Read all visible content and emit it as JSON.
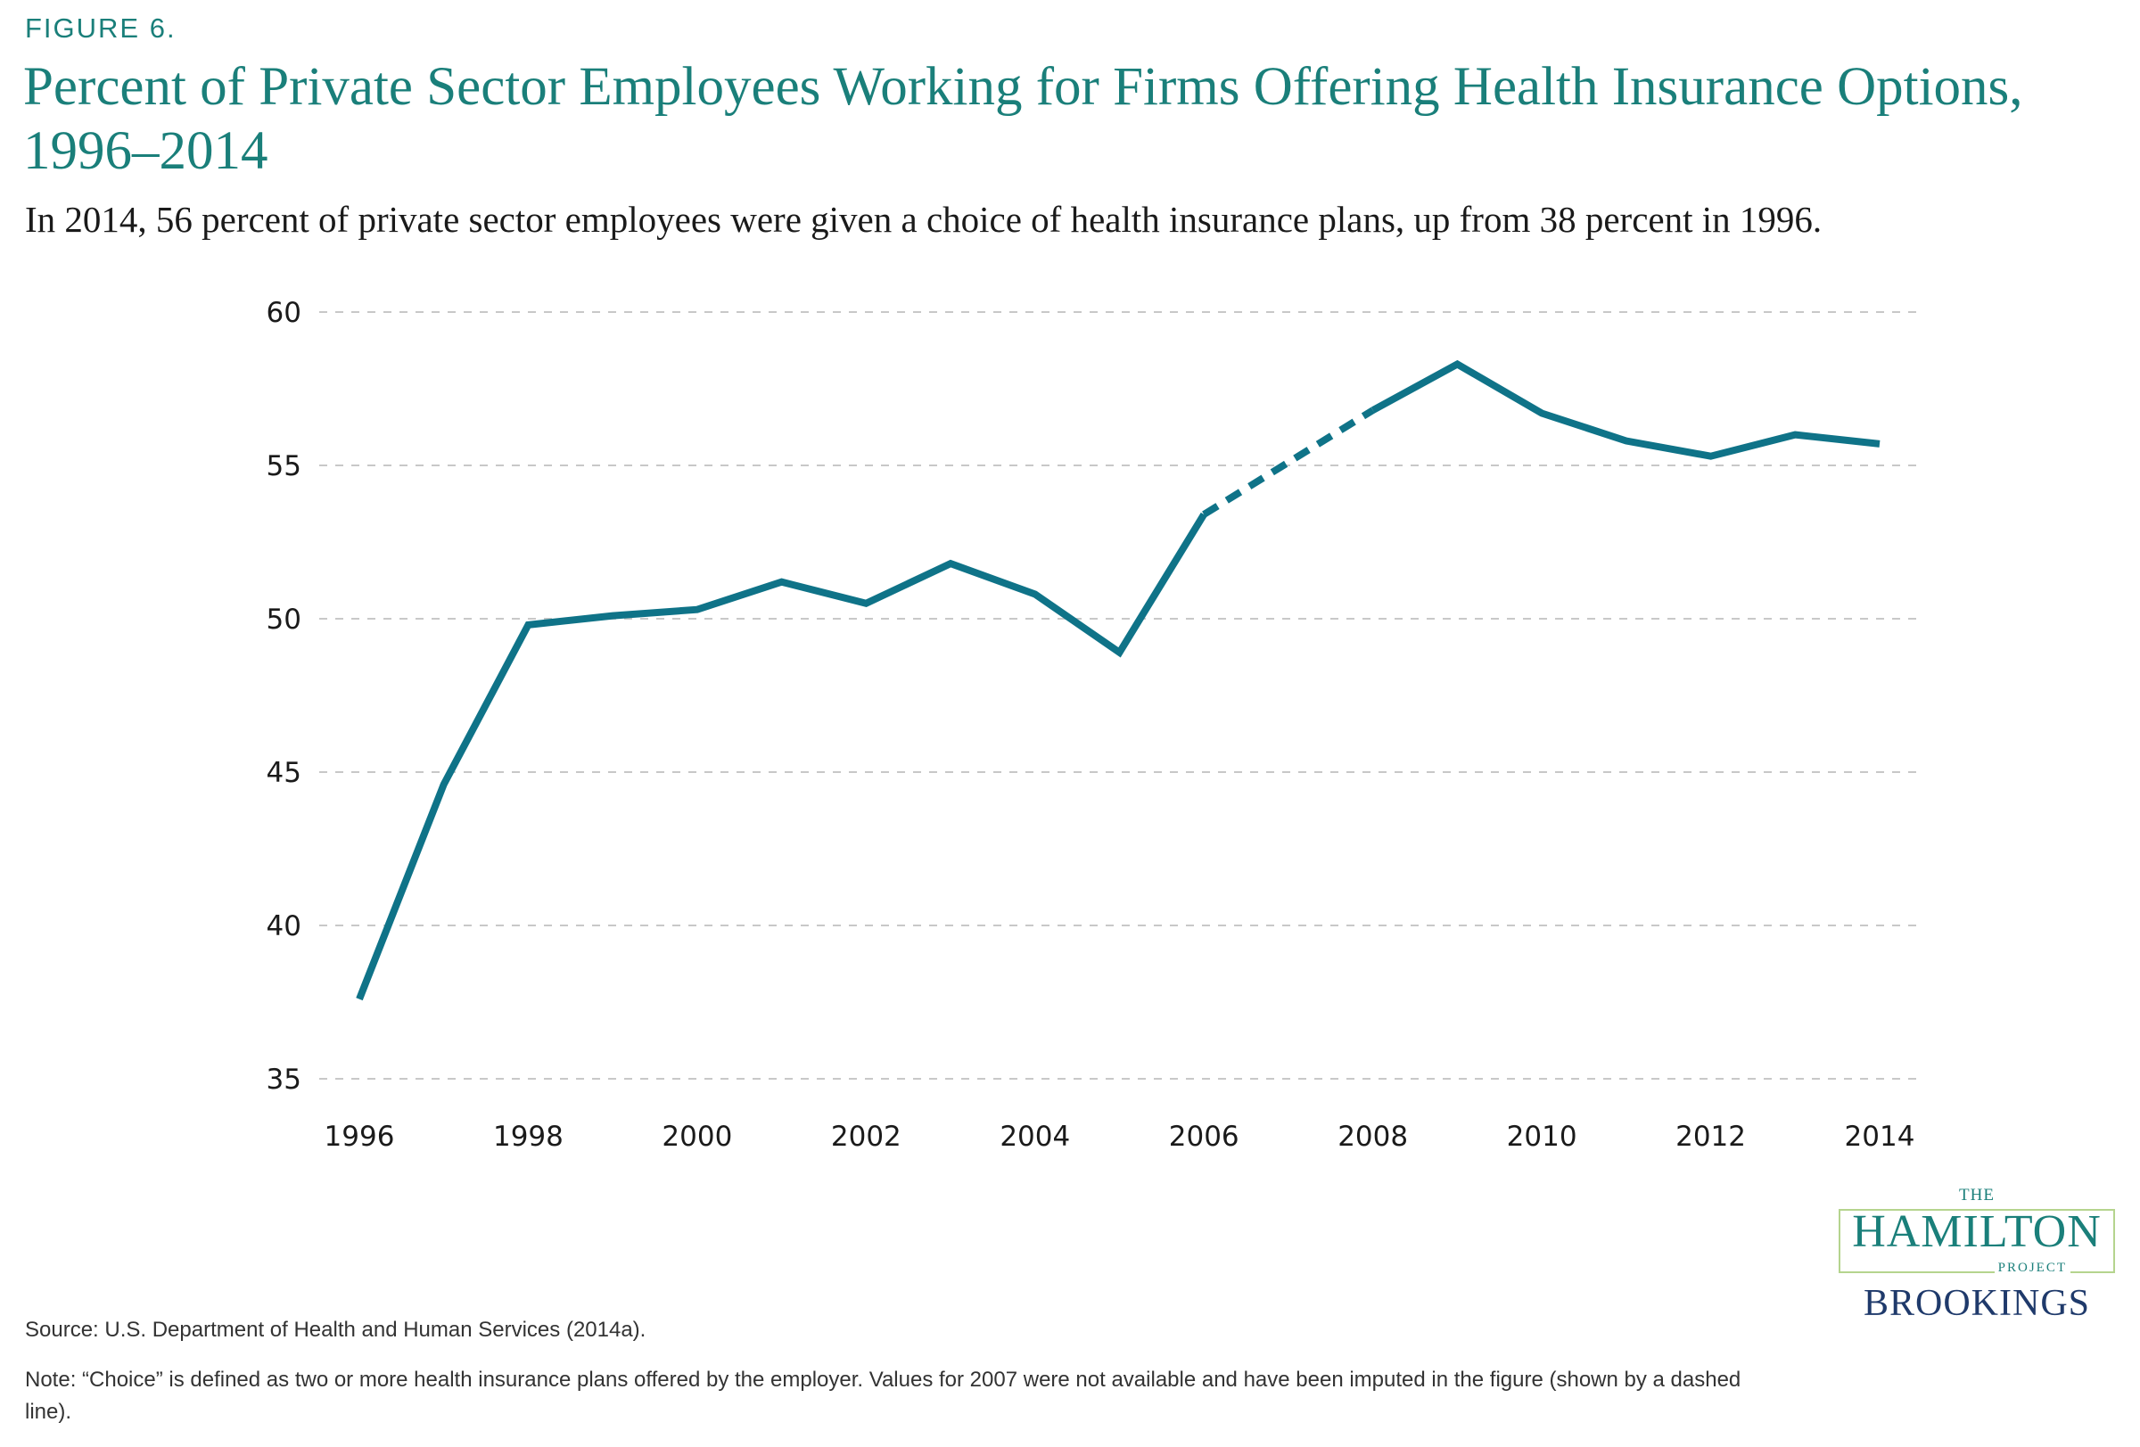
{
  "figure_label": "FIGURE 6.",
  "title": "Percent of Private Sector Employees Working for Firms Offering Health Insurance Options, 1996–2014",
  "subtitle": "In 2014, 56 percent of private sector employees were given a choice of health insurance plans, up from 38 percent in 1996.",
  "source": "Source: U.S. Department of Health and Human Services (2014a).",
  "note": "Note: “Choice” is defined as two or more health insurance plans offered by the employer. Values for 2007 were not available and have been imputed in the figure (shown by a dashed line).",
  "logo": {
    "the": "THE",
    "hamilton": "HAMILTON",
    "project": "PROJECT",
    "brookings": "BROOKINGS"
  },
  "colors": {
    "accent": "#1a7f7a",
    "line": "#0f7388",
    "grid": "#c8c8c8",
    "logo_border": "#b5d48e",
    "brookings": "#1f3a6b"
  },
  "chart_data": {
    "type": "line",
    "title": "Percent of Private Sector Employees Working for Firms Offering Health Insurance Options, 1996–2014",
    "xlabel": "",
    "ylabel": "",
    "ylim": [
      35,
      60
    ],
    "yticks": [
      35,
      40,
      45,
      50,
      55,
      60
    ],
    "xlim": [
      1996,
      2014
    ],
    "xticks": [
      1996,
      1998,
      2000,
      2002,
      2004,
      2006,
      2008,
      2010,
      2012,
      2014
    ],
    "grid": "horizontal dashed",
    "series": [
      {
        "x": [
          1996,
          1997,
          1998,
          1999,
          2000,
          2001,
          2002,
          2003,
          2004,
          2005,
          2006,
          2007,
          2008,
          2009,
          2010,
          2011,
          2012,
          2013,
          2014
        ],
        "y": [
          37.6,
          44.6,
          49.8,
          50.1,
          50.3,
          51.2,
          50.5,
          51.8,
          50.8,
          48.9,
          53.4,
          55.1,
          56.8,
          58.3,
          56.7,
          55.8,
          55.3,
          56.0,
          55.7
        ],
        "imputed_segment": [
          2006,
          2008
        ]
      }
    ]
  }
}
